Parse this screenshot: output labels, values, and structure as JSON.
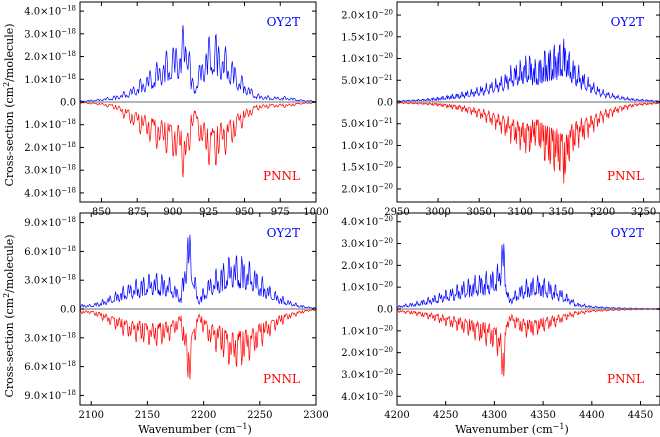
{
  "chart_data": [
    {
      "type": "line",
      "panel": "top-left",
      "xlim": [
        835,
        1000
      ],
      "ylim": [
        -4.4e-18,
        4.4e-18
      ],
      "xticks": [
        {
          "v": 850,
          "t": "850"
        },
        {
          "v": 875,
          "t": "875"
        },
        {
          "v": 900,
          "t": "900"
        },
        {
          "v": 925,
          "t": "925"
        },
        {
          "v": 950,
          "t": "950"
        },
        {
          "v": 975,
          "t": "975"
        },
        {
          "v": 1000,
          "t": "1000"
        }
      ],
      "yticks": [
        {
          "v": 4e-18,
          "t": "4.0×10",
          "e": "−18"
        },
        {
          "v": 3e-18,
          "t": "3.0×10",
          "e": "−18"
        },
        {
          "v": 2e-18,
          "t": "2.0×10",
          "e": "−18"
        },
        {
          "v": 1e-18,
          "t": "1.0×10",
          "e": "−18"
        },
        {
          "v": 0,
          "t": "0.0",
          "e": ""
        },
        {
          "v": -1e-18,
          "t": "1.0×10",
          "e": "−18"
        },
        {
          "v": -2e-18,
          "t": "2.0×10",
          "e": "−18"
        },
        {
          "v": -3e-18,
          "t": "3.0×10",
          "e": "−18"
        },
        {
          "v": -4e-18,
          "t": "4.0×10",
          "e": "−18"
        }
      ],
      "series": [
        {
          "name": "OY2T",
          "color": "#0000ff",
          "sign": 1,
          "scale": 1e-18,
          "x": [
            836,
            850,
            860,
            870,
            880,
            890,
            895,
            900,
            905,
            908,
            910,
            913,
            915,
            918,
            920,
            925,
            930,
            935,
            940,
            945,
            950,
            955,
            960,
            965,
            970,
            975,
            980,
            990,
            1000
          ],
          "y": [
            0.05,
            0.15,
            0.3,
            0.6,
            1.2,
            1.9,
            2.3,
            2.6,
            3.0,
            3.6,
            4.1,
            1.2,
            1.0,
            1.5,
            2.2,
            3.0,
            3.2,
            2.6,
            2.2,
            1.5,
            1.0,
            0.6,
            0.35,
            0.3,
            0.25,
            0.25,
            0.25,
            0.1,
            0.05
          ]
        },
        {
          "name": "PNNL",
          "color": "#ff0000",
          "sign": -1,
          "scale": 1e-18,
          "x": [
            836,
            850,
            860,
            870,
            880,
            890,
            895,
            900,
            905,
            908,
            910,
            913,
            915,
            918,
            920,
            925,
            930,
            935,
            940,
            945,
            950,
            955,
            960,
            965,
            970,
            975,
            980,
            990,
            1000
          ],
          "y": [
            0.05,
            0.15,
            0.35,
            1.0,
            1.6,
            2.2,
            2.3,
            2.6,
            3.0,
            3.5,
            3.9,
            1.2,
            1.0,
            1.6,
            2.3,
            2.9,
            3.0,
            2.4,
            2.2,
            1.5,
            1.0,
            0.6,
            0.35,
            0.3,
            0.25,
            0.25,
            0.25,
            0.1,
            0.05
          ]
        }
      ]
    },
    {
      "type": "line",
      "panel": "top-right",
      "xlim": [
        2950,
        3270
      ],
      "ylim": [
        -2.3e-20,
        2.3e-20
      ],
      "xticks": [
        {
          "v": 2950,
          "t": "2950"
        },
        {
          "v": 3000,
          "t": "3000"
        },
        {
          "v": 3050,
          "t": "3050"
        },
        {
          "v": 3100,
          "t": "3100"
        },
        {
          "v": 3150,
          "t": "3150"
        },
        {
          "v": 3200,
          "t": "3200"
        },
        {
          "v": 3250,
          "t": "3250"
        }
      ],
      "yticks": [
        {
          "v": 2e-20,
          "t": "2.0×10",
          "e": "−20"
        },
        {
          "v": 1.5e-20,
          "t": "1.5×10",
          "e": "−20"
        },
        {
          "v": 1e-20,
          "t": "1.0×10",
          "e": "−20"
        },
        {
          "v": 5e-21,
          "t": "5.0×10",
          "e": "−21"
        },
        {
          "v": 0,
          "t": "0.0",
          "e": ""
        },
        {
          "v": -5e-21,
          "t": "5.0×10",
          "e": "−21"
        },
        {
          "v": -1e-20,
          "t": "1.0×10",
          "e": "−20"
        },
        {
          "v": -1.5e-20,
          "t": "1.5×10",
          "e": "−20"
        },
        {
          "v": -2e-20,
          "t": "2.0×10",
          "e": "−20"
        }
      ],
      "series": [
        {
          "name": "OY2T",
          "color": "#0000ff",
          "sign": 1,
          "scale": 1e-20,
          "x": [
            2950,
            2980,
            3000,
            3020,
            3040,
            3060,
            3080,
            3090,
            3100,
            3110,
            3120,
            3130,
            3140,
            3150,
            3155,
            3160,
            3170,
            3180,
            3190,
            3200,
            3220,
            3240,
            3270
          ],
          "y": [
            0.03,
            0.07,
            0.12,
            0.2,
            0.3,
            0.45,
            0.65,
            0.9,
            1.0,
            1.2,
            1.0,
            1.3,
            1.4,
            1.5,
            1.6,
            1.2,
            0.9,
            0.65,
            0.45,
            0.3,
            0.15,
            0.08,
            0.03
          ]
        },
        {
          "name": "PNNL",
          "color": "#ff0000",
          "sign": -1,
          "scale": 1e-20,
          "x": [
            2950,
            2980,
            3000,
            3020,
            3040,
            3060,
            3080,
            3090,
            3100,
            3110,
            3120,
            3130,
            3140,
            3150,
            3155,
            3160,
            3170,
            3180,
            3190,
            3200,
            3220,
            3240,
            3270
          ],
          "y": [
            0.03,
            0.06,
            0.1,
            0.18,
            0.3,
            0.5,
            0.8,
            1.0,
            1.15,
            1.3,
            1.0,
            1.5,
            1.7,
            1.8,
            2.15,
            1.4,
            1.1,
            0.9,
            0.7,
            0.5,
            0.25,
            0.1,
            0.04
          ]
        }
      ]
    },
    {
      "type": "line",
      "panel": "bottom-left",
      "xlim": [
        2090,
        2300
      ],
      "ylim": [
        -1e-17,
        1e-17
      ],
      "xticks": [
        {
          "v": 2100,
          "t": "2100"
        },
        {
          "v": 2150,
          "t": "2150"
        },
        {
          "v": 2200,
          "t": "2200"
        },
        {
          "v": 2250,
          "t": "2250"
        },
        {
          "v": 2300,
          "t": "2300"
        }
      ],
      "yticks": [
        {
          "v": 9e-18,
          "t": "9.0×10",
          "e": "−18"
        },
        {
          "v": 6e-18,
          "t": "6.0×10",
          "e": "−18"
        },
        {
          "v": 3e-18,
          "t": "3.0×10",
          "e": "−18"
        },
        {
          "v": 0,
          "t": "0.0",
          "e": ""
        },
        {
          "v": -3e-18,
          "t": "3.0×10",
          "e": "−18"
        },
        {
          "v": -6e-18,
          "t": "6.0×10",
          "e": "−18"
        },
        {
          "v": -9e-18,
          "t": "9.0×10",
          "e": "−18"
        }
      ],
      "series": [
        {
          "name": "OY2T",
          "color": "#0000ff",
          "sign": 1,
          "scale": 1e-18,
          "x": [
            2100,
            2110,
            2120,
            2130,
            2140,
            2150,
            2160,
            2170,
            2180,
            2186,
            2187,
            2195,
            2205,
            2215,
            2225,
            2235,
            2245,
            2255,
            2265,
            2275,
            2285,
            2295
          ],
          "y": [
            0.5,
            1.0,
            1.7,
            2.6,
            3.2,
            3.8,
            4.0,
            3.4,
            1.8,
            9.2,
            9.0,
            1.2,
            3.5,
            4.8,
            6.0,
            5.8,
            4.6,
            3.0,
            1.8,
            1.0,
            0.5,
            0.2
          ]
        },
        {
          "name": "PNNL",
          "color": "#ff0000",
          "sign": -1,
          "scale": 1e-18,
          "x": [
            2100,
            2110,
            2120,
            2130,
            2140,
            2150,
            2160,
            2170,
            2180,
            2186,
            2187,
            2195,
            2205,
            2215,
            2225,
            2235,
            2245,
            2255,
            2265,
            2275,
            2285,
            2295
          ],
          "y": [
            0.5,
            1.2,
            2.0,
            3.0,
            3.5,
            3.9,
            4.1,
            3.4,
            2.0,
            8.8,
            8.5,
            1.3,
            3.9,
            5.0,
            6.5,
            6.2,
            5.0,
            3.5,
            2.2,
            1.2,
            0.6,
            0.2
          ]
        }
      ]
    },
    {
      "type": "line",
      "panel": "bottom-right",
      "xlim": [
        4200,
        4470
      ],
      "ylim": [
        -4.4e-20,
        4.4e-20
      ],
      "xticks": [
        {
          "v": 4200,
          "t": "4200"
        },
        {
          "v": 4250,
          "t": "4250"
        },
        {
          "v": 4300,
          "t": "4300"
        },
        {
          "v": 4350,
          "t": "4350"
        },
        {
          "v": 4400,
          "t": "4400"
        },
        {
          "v": 4450,
          "t": "4450"
        }
      ],
      "yticks": [
        {
          "v": 4e-20,
          "t": "4.0×10",
          "e": "−20"
        },
        {
          "v": 3e-20,
          "t": "3.0×10",
          "e": "−20"
        },
        {
          "v": 2e-20,
          "t": "2.0×10",
          "e": "−20"
        },
        {
          "v": 1e-20,
          "t": "1.0×10",
          "e": "−20"
        },
        {
          "v": 0,
          "t": "0.0",
          "e": ""
        },
        {
          "v": -1e-20,
          "t": "1.0×10",
          "e": "−20"
        },
        {
          "v": -2e-20,
          "t": "2.0×10",
          "e": "−20"
        },
        {
          "v": -3e-20,
          "t": "3.0×10",
          "e": "−20"
        },
        {
          "v": -4e-20,
          "t": "4.0×10",
          "e": "−20"
        }
      ],
      "series": [
        {
          "name": "OY2T",
          "color": "#0000ff",
          "sign": 1,
          "scale": 1e-20,
          "x": [
            4200,
            4220,
            4240,
            4255,
            4270,
            4285,
            4295,
            4305,
            4308,
            4309,
            4315,
            4325,
            4335,
            4345,
            4355,
            4365,
            4375,
            4385,
            4400,
            4420,
            4440,
            4470
          ],
          "y": [
            0.15,
            0.35,
            0.7,
            1.0,
            1.4,
            1.7,
            1.8,
            2.2,
            3.9,
            3.5,
            0.5,
            1.1,
            1.5,
            1.6,
            1.4,
            1.1,
            0.7,
            0.3,
            0.15,
            0.08,
            0.05,
            0.03
          ]
        },
        {
          "name": "PNNL",
          "color": "#ff0000",
          "sign": -1,
          "scale": 1e-20,
          "x": [
            4200,
            4220,
            4240,
            4255,
            4270,
            4285,
            4295,
            4305,
            4308,
            4309,
            4315,
            4325,
            4335,
            4345,
            4355,
            4365,
            4375,
            4385,
            4400,
            4420,
            4440,
            4470
          ],
          "y": [
            0.15,
            0.3,
            0.6,
            0.9,
            1.2,
            1.6,
            1.8,
            2.3,
            4.0,
            3.6,
            0.6,
            1.1,
            1.4,
            1.2,
            1.0,
            0.8,
            0.5,
            0.3,
            0.15,
            0.08,
            0.05,
            0.03
          ]
        }
      ]
    }
  ],
  "ylabel_main": "Cross-section (cm",
  "ylabel_sup": "2",
  "ylabel_tail": "/molecule)",
  "xlabel_main": "Wavenumber (cm",
  "xlabel_sup": "−1",
  "xlabel_tail": ")"
}
